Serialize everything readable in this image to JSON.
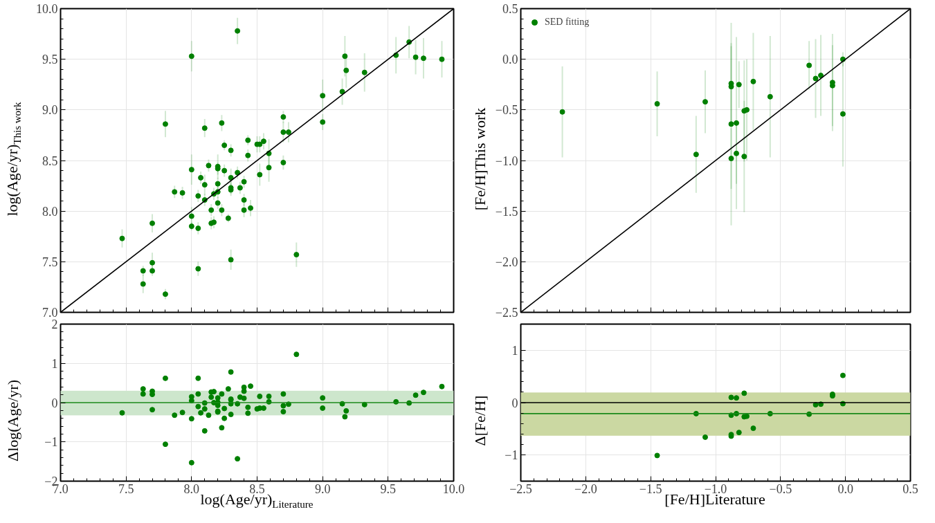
{
  "chart_data": [
    {
      "type": "scatter",
      "ylabel": "log(Age/yr)$_{This work}$",
      "grid": true,
      "tick_labels": "y",
      "xlim": [
        7.0,
        10.0
      ],
      "ylim": [
        7.0,
        10.0
      ],
      "xticks": [
        7.0,
        7.5,
        8.0,
        8.5,
        9.0,
        9.5,
        10.0
      ],
      "yticks": [
        {
          "value": 7.0,
          "label": "7.0"
        },
        {
          "value": 7.5,
          "label": "7.5"
        },
        {
          "value": 8.0,
          "label": "8.0"
        },
        {
          "value": 8.5,
          "label": "8.5"
        },
        {
          "value": 9.0,
          "label": "9.0"
        },
        {
          "value": 9.5,
          "label": "9.5"
        },
        {
          "value": 10.0,
          "label": "10.0"
        }
      ],
      "series": [
        {
          "color": "#008000",
          "marker": "circle",
          "x": [
            8.35,
            8.0,
            7.8,
            8.1,
            8.23,
            8.43,
            8.5,
            8.52,
            8.55,
            8.25,
            8.3,
            8.43,
            8.0,
            8.13,
            8.2,
            8.2,
            8.25,
            8.35,
            8.07,
            8.3,
            8.52,
            8.1,
            8.2,
            8.3,
            8.3,
            8.37,
            8.4,
            7.87,
            7.93,
            8.05,
            8.17,
            8.2,
            8.1,
            8.4,
            8.15,
            8.23,
            8.4,
            8.45,
            8.2,
            8.0,
            8.28,
            8.15,
            8.17,
            7.7,
            8.0,
            8.05,
            7.47,
            8.3,
            7.7,
            7.63,
            7.7,
            8.05,
            7.63,
            7.8,
            8.59,
            8.59,
            8.7,
            8.7,
            8.74,
            8.7,
            8.8,
            9.0,
            9.0,
            9.15,
            9.17,
            9.18,
            9.32,
            9.56,
            9.66,
            9.71,
            9.77,
            9.91
          ],
          "values": [
            9.78,
            9.53,
            8.86,
            8.82,
            8.87,
            8.7,
            8.66,
            8.66,
            8.69,
            8.65,
            8.6,
            8.55,
            8.41,
            8.45,
            8.44,
            8.42,
            8.4,
            8.38,
            8.33,
            8.33,
            8.36,
            8.26,
            8.27,
            8.23,
            8.21,
            8.23,
            8.29,
            8.19,
            8.18,
            8.15,
            8.17,
            8.19,
            8.11,
            8.11,
            8.01,
            8.01,
            8.01,
            8.03,
            8.08,
            7.95,
            7.93,
            7.88,
            7.89,
            7.88,
            7.85,
            7.83,
            7.73,
            7.52,
            7.49,
            7.41,
            7.41,
            7.43,
            7.28,
            7.18,
            8.57,
            8.43,
            8.93,
            8.78,
            8.78,
            8.48,
            7.57,
            9.14,
            8.88,
            9.18,
            9.53,
            9.39,
            9.37,
            9.54,
            9.67,
            9.52,
            9.51,
            9.5
          ],
          "errors": [
            0.13,
            0.15,
            0.13,
            0.09,
            0.08,
            0.05,
            0.08,
            0.08,
            0.08,
            0.05,
            0.06,
            0.06,
            0.15,
            0.06,
            0.12,
            0.06,
            0.06,
            0.06,
            0.06,
            0.09,
            0.11,
            0.1,
            0.06,
            0.06,
            0.06,
            0.06,
            0.06,
            0.06,
            0.06,
            0.06,
            0.06,
            0.06,
            0.06,
            0.06,
            0.06,
            0.06,
            0.07,
            0.08,
            0.06,
            0.09,
            0.04,
            0.06,
            0.06,
            0.09,
            0.04,
            0.06,
            0.09,
            0.1,
            0.1,
            0.05,
            0.05,
            0.07,
            0.09,
            0.05,
            0.14,
            0.14,
            0.06,
            0.1,
            0.1,
            0.07,
            0.12,
            0.16,
            0.08,
            0.13,
            0.2,
            0.17,
            0.19,
            0.18,
            0.16,
            0.17,
            0.2,
            0.18
          ]
        },
        {
          "type": "line",
          "color": "#000000",
          "x": [
            7.0,
            10.0
          ],
          "values": [
            7.0,
            10.0
          ]
        }
      ]
    },
    {
      "type": "scatter",
      "ylabel": "[Fe/H]This work",
      "grid": true,
      "tick_labels": "y",
      "legend": "top left",
      "xlim": [
        -2.5,
        0.5
      ],
      "ylim": [
        -2.5,
        0.5
      ],
      "xticks": [
        -2.5,
        -2.0,
        -1.5,
        -1.0,
        -0.5,
        0.0,
        0.5
      ],
      "yticks": [
        {
          "value": -2.5,
          "label": "−2.5"
        },
        {
          "value": -2.0,
          "label": "−2.0"
        },
        {
          "value": -1.5,
          "label": "−1.5"
        },
        {
          "value": -1.0,
          "label": "−1.0"
        },
        {
          "value": -0.5,
          "label": "−0.5"
        },
        {
          "value": 0.0,
          "label": "0.0"
        },
        {
          "value": 0.5,
          "label": "0.5"
        }
      ],
      "series": [
        {
          "name": "SED fitting",
          "color": "#008000",
          "marker": "circle",
          "x": [
            -2.18,
            -1.45,
            -1.08,
            -1.15,
            -0.88,
            -0.88,
            -0.82,
            -0.71,
            -0.58,
            -0.78,
            -0.76,
            -0.88,
            -0.84,
            -0.88,
            -0.84,
            -0.78,
            -0.28,
            -0.23,
            -0.19,
            -0.1,
            -0.1,
            -0.02,
            -0.02
          ],
          "values": [
            -0.52,
            -0.44,
            -0.42,
            -0.94,
            -0.24,
            -0.27,
            -0.25,
            -0.22,
            -0.37,
            -0.51,
            -0.5,
            -0.64,
            -0.63,
            -0.98,
            -0.93,
            -0.96,
            -0.06,
            -0.19,
            -0.16,
            -0.23,
            -0.26,
            0.0,
            -0.54
          ],
          "errors": [
            0.45,
            0.32,
            0.31,
            0.38,
            0.4,
            0.4,
            0.23,
            0.48,
            0.6,
            0.5,
            0.5,
            1.0,
            0.85,
            0.3,
            0.3,
            0.55,
            0.24,
            0.39,
            0.4,
            0.48,
            0.4,
            0.07,
            0.52
          ]
        },
        {
          "type": "line",
          "color": "#000000",
          "x": [
            -2.5,
            0.5
          ],
          "values": [
            -2.5,
            0.5
          ]
        }
      ]
    },
    {
      "type": "scatter",
      "xlabel": "log(Age/yr)$_{Literature}$",
      "ylabel": "Δlog(Age/yr)",
      "grid": true,
      "xlim": [
        7.0,
        10.0
      ],
      "ylim": [
        -2,
        2
      ],
      "xticks": [
        {
          "value": 7.0,
          "label": "7.0"
        },
        {
          "value": 7.5,
          "label": "7.5"
        },
        {
          "value": 8.0,
          "label": "8.0"
        },
        {
          "value": 8.5,
          "label": "8.5"
        },
        {
          "value": 9.0,
          "label": "9.0"
        },
        {
          "value": 9.5,
          "label": "9.5"
        },
        {
          "value": 10.0,
          "label": "10.0"
        }
      ],
      "yticks": [
        {
          "value": -2,
          "label": "−2"
        },
        {
          "value": -1,
          "label": "−1"
        },
        0,
        1,
        2
      ],
      "ref_lines": [
        {
          "axis": "y",
          "value": 0,
          "color": "#1a8a1a"
        }
      ],
      "bands": [
        {
          "axis": "y",
          "from": -0.32,
          "to": 0.3,
          "color": "#cde6cc"
        }
      ],
      "series": [
        {
          "color": "#008000",
          "x": [
            8.35,
            8.0,
            7.8,
            8.1,
            8.23,
            8.43,
            8.5,
            8.52,
            8.55,
            8.25,
            8.3,
            8.43,
            8.0,
            8.13,
            8.2,
            8.2,
            8.25,
            8.35,
            8.07,
            8.3,
            8.52,
            8.1,
            8.2,
            8.3,
            8.3,
            8.37,
            8.4,
            7.87,
            7.93,
            8.05,
            8.17,
            8.2,
            8.1,
            8.4,
            8.15,
            8.23,
            8.4,
            8.45,
            8.2,
            8.0,
            8.28,
            8.15,
            8.17,
            7.7,
            8.0,
            8.05,
            7.47,
            8.3,
            7.7,
            7.63,
            7.7,
            8.05,
            7.63,
            7.8,
            8.59,
            8.59,
            8.7,
            8.7,
            8.74,
            8.7,
            8.8,
            9.0,
            9.0,
            9.15,
            9.17,
            9.18,
            9.32,
            9.56,
            9.66,
            9.71,
            9.77,
            9.91
          ],
          "marker": "circle",
          "values": [
            -1.43,
            -1.53,
            -1.06,
            -0.72,
            -0.64,
            -0.27,
            -0.16,
            -0.14,
            -0.14,
            -0.4,
            -0.3,
            -0.12,
            -0.41,
            -0.32,
            -0.24,
            -0.22,
            -0.15,
            -0.03,
            -0.26,
            -0.03,
            0.16,
            -0.16,
            -0.07,
            0.07,
            0.09,
            0.14,
            0.11,
            -0.32,
            -0.25,
            -0.1,
            0.0,
            0.01,
            -0.01,
            0.29,
            0.14,
            0.22,
            0.39,
            0.42,
            0.12,
            0.05,
            0.35,
            0.27,
            0.28,
            -0.18,
            0.15,
            0.22,
            -0.26,
            0.78,
            0.21,
            0.22,
            0.29,
            0.62,
            0.35,
            0.62,
            0.02,
            0.16,
            -0.23,
            -0.08,
            -0.04,
            0.22,
            1.23,
            -0.14,
            0.12,
            -0.03,
            -0.36,
            -0.21,
            -0.05,
            0.02,
            -0.01,
            0.19,
            0.26,
            0.41
          ]
        }
      ]
    },
    {
      "type": "scatter",
      "xlabel": "[Fe/H]Literature",
      "ylabel": "Δ[Fe/H]",
      "grid": true,
      "xlim": [
        -2.5,
        0.5
      ],
      "ylim": [
        -1.5,
        1.5
      ],
      "xticks": [
        {
          "value": -2.5,
          "label": "−2.5"
        },
        {
          "value": -2.0,
          "label": "−2.0"
        },
        {
          "value": -1.5,
          "label": "−1.5"
        },
        {
          "value": -1.0,
          "label": "−1.0"
        },
        {
          "value": -0.5,
          "label": "−0.5"
        },
        {
          "value": 0.0,
          "label": "0.0"
        },
        {
          "value": 0.5,
          "label": "0.5"
        }
      ],
      "yticks": [
        {
          "value": -1,
          "label": "−1"
        },
        0,
        1
      ],
      "ref_lines": [
        {
          "axis": "y",
          "value": 0,
          "color": "#000000"
        },
        {
          "axis": "y",
          "value": -0.21,
          "color": "#1a8a1a"
        }
      ],
      "bands": [
        {
          "axis": "y",
          "from": -0.63,
          "to": 0.19,
          "color": "#cbd8a2"
        }
      ],
      "series": [
        {
          "color": "#008000",
          "marker": "circle",
          "x": [
            -1.45,
            -1.08,
            -1.15,
            -0.88,
            -0.88,
            -0.82,
            -0.71,
            -0.58,
            -0.78,
            -0.76,
            -0.88,
            -0.84,
            -0.88,
            -0.84,
            -0.78,
            -0.28,
            -0.23,
            -0.19,
            -0.1,
            -0.1,
            -0.02,
            -0.02
          ],
          "values": [
            -1.01,
            -0.66,
            -0.21,
            -0.64,
            -0.61,
            -0.57,
            -0.49,
            -0.21,
            -0.27,
            -0.26,
            -0.24,
            -0.21,
            0.1,
            0.09,
            0.18,
            -0.22,
            -0.04,
            -0.03,
            0.13,
            0.16,
            -0.02,
            0.52
          ]
        }
      ]
    }
  ]
}
